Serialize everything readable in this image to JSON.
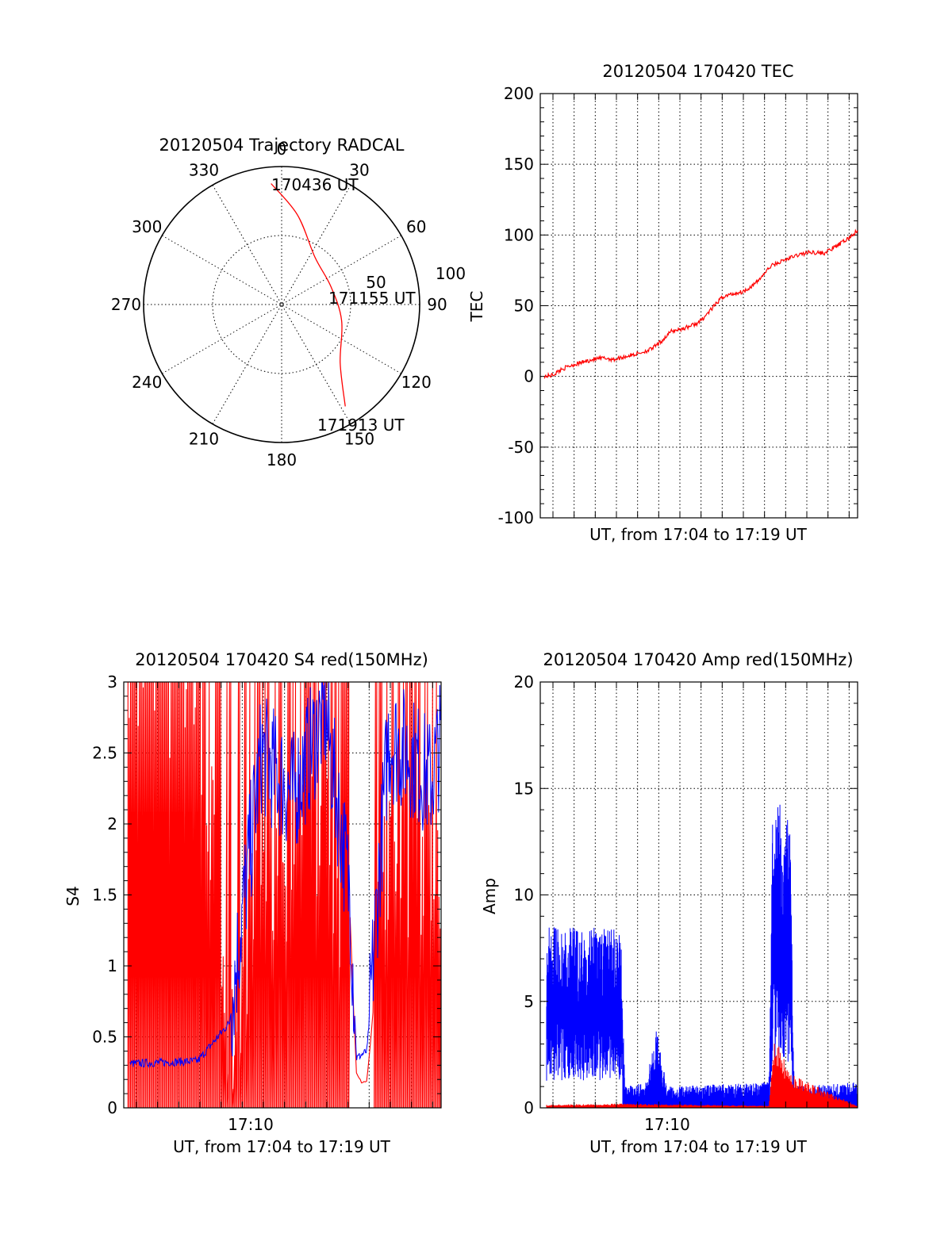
{
  "chart_data": [
    {
      "type": "polar",
      "title": "20120504 Trajectory RADCAL",
      "angle_labels": [
        "0",
        "30",
        "60",
        "90",
        "120",
        "150",
        "180",
        "210",
        "240",
        "270",
        "300",
        "330"
      ],
      "radial_labels": [
        "50",
        "100"
      ],
      "rlim": [
        0,
        100
      ],
      "grid": true,
      "trajectory": {
        "points": [
          [
            -5,
            88
          ],
          [
            10,
            66
          ],
          [
            35,
            42
          ],
          [
            70,
            38
          ],
          [
            105,
            45
          ],
          [
            135,
            60
          ],
          [
            148,
            87
          ]
        ],
        "annotations": [
          "170436 UT",
          "171155 UT",
          "171913 UT"
        ]
      },
      "color": "#ff0000"
    },
    {
      "type": "line",
      "title": "20120504 170420 TEC",
      "xlabel": "UT, from 17:04 to 17:19 UT",
      "ylabel": "TEC",
      "yticks": [
        "200",
        "150",
        "100",
        "50",
        "0",
        "-50",
        "-100"
      ],
      "ylim": [
        -100,
        200
      ],
      "xlim_minutes": [
        0,
        15
      ],
      "grid": true,
      "series": [
        {
          "color": "#ff0000",
          "x": [
            0.2,
            0.6,
            1.0,
            1.5,
            2.0,
            2.5,
            3.0,
            3.5,
            4.0,
            4.6,
            5.2,
            5.6,
            6.2,
            6.8,
            7.5,
            8.0,
            8.6,
            9.0,
            9.6,
            10.2,
            10.9,
            11.5,
            12.2,
            12.8,
            13.4,
            14.0,
            14.6,
            15.0
          ],
          "y": [
            0,
            1,
            5,
            8,
            10,
            12,
            13,
            12,
            14,
            16,
            19,
            23,
            32,
            34,
            38,
            46,
            56,
            58,
            60,
            66,
            78,
            82,
            86,
            88,
            87,
            92,
            98,
            103
          ]
        }
      ]
    },
    {
      "type": "line",
      "title": "20120504 170420 S4 red(150MHz)",
      "xlabel": "UT, from 17:04 to 17:19 UT",
      "ylabel": "S4",
      "xticks": [
        "17:10"
      ],
      "yticks": [
        "3",
        "2.5",
        "2",
        "1.5",
        "1",
        "0.5",
        "0"
      ],
      "ylim": [
        0,
        3
      ],
      "xlim_minutes": [
        0,
        15
      ],
      "grid": true,
      "series": [
        {
          "color": "#0000ff",
          "x": [
            0.2,
            3.5,
            5.0,
            6.5,
            8.0,
            9.5,
            10.7,
            11.0,
            11.5,
            12.5,
            13.5,
            14.5,
            15.0
          ],
          "y": [
            0.31,
            0.33,
            0.6,
            2.5,
            2.2,
            2.8,
            1.5,
            0.35,
            0.4,
            2.6,
            2.5,
            2.3,
            2.6
          ]
        },
        {
          "color": "#ff0000",
          "x": [
            0.2,
            3.5,
            5.0,
            6.5,
            8.0,
            9.5,
            10.7,
            11.0,
            11.5,
            12.5,
            13.5,
            14.5,
            15.0
          ],
          "y": [
            3.0,
            3.0,
            0.6,
            1.5,
            1.8,
            1.8,
            1.3,
            0.2,
            0.18,
            1.8,
            1.8,
            1.8,
            1.8
          ]
        }
      ]
    },
    {
      "type": "line",
      "title": "20120504 170420 Amp red(150MHz)",
      "xlabel": "UT, from 17:04 to 17:19 UT",
      "ylabel": "Amp",
      "xticks": [
        "17:10"
      ],
      "yticks": [
        "20",
        "15",
        "10",
        "5",
        "0"
      ],
      "ylim": [
        0,
        20
      ],
      "xlim_minutes": [
        0,
        15
      ],
      "grid": true,
      "series": [
        {
          "color": "#0000ff",
          "x": [
            0.3,
            3.8,
            4.0,
            5.0,
            5.5,
            6.0,
            10.8,
            11.0,
            11.8,
            12.0,
            15.0
          ],
          "y": [
            8.5,
            8.5,
            1.0,
            1.2,
            3.8,
            1.0,
            1.2,
            14.8,
            13.6,
            1.0,
            1.2
          ]
        },
        {
          "color": "#ff0000",
          "x": [
            0.3,
            3.8,
            10.8,
            11.1,
            11.8,
            15.0
          ],
          "y": [
            0.15,
            0.2,
            0.1,
            3.5,
            1.6,
            0.1
          ]
        }
      ]
    }
  ]
}
